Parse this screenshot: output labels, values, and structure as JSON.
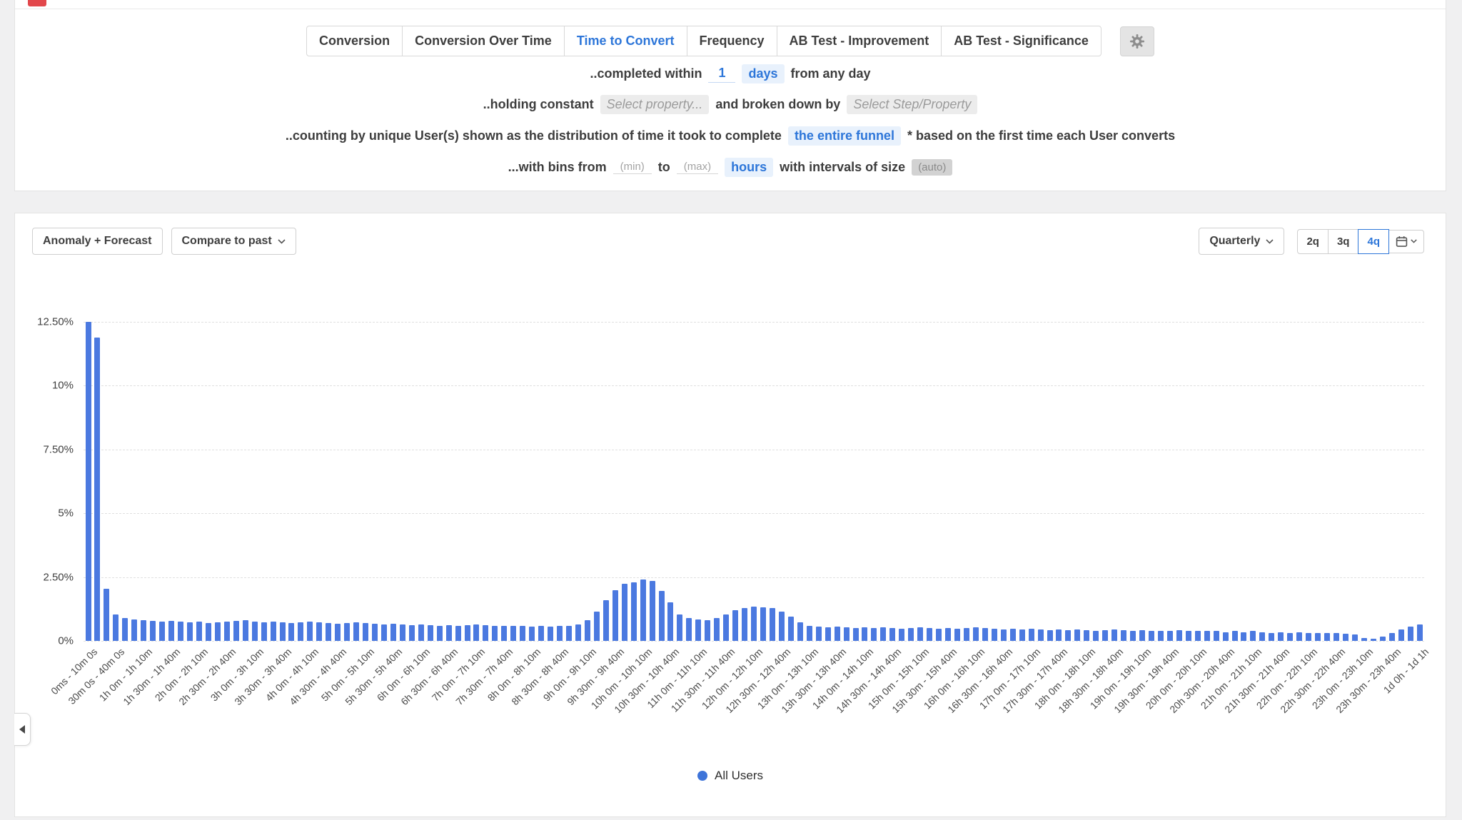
{
  "tabs": {
    "items": [
      {
        "label": "Conversion",
        "active": false
      },
      {
        "label": "Conversion Over Time",
        "active": false
      },
      {
        "label": "Time to Convert",
        "active": true
      },
      {
        "label": "Frequency",
        "active": false
      },
      {
        "label": "AB Test - Improvement",
        "active": false
      },
      {
        "label": "AB Test - Significance",
        "active": false
      }
    ]
  },
  "config": {
    "line1": {
      "prefix": "..completed within",
      "value": "1",
      "unit": "days",
      "suffix": "from any day"
    },
    "line2": {
      "prefix": "..holding constant",
      "placeholder1": "Select property...",
      "middle": "and broken down by",
      "placeholder2": "Select Step/Property"
    },
    "line3": {
      "prefix": "..counting by unique User(s) shown as the distribution of time it took to complete",
      "value": "the entire funnel",
      "suffix": "* based on the first time each User converts"
    },
    "line4": {
      "prefix": "...with bins from",
      "min_placeholder": "(min)",
      "to": "to",
      "max_placeholder": "(max)",
      "unit": "hours",
      "middle": "with intervals of size",
      "auto_placeholder": "(auto)"
    }
  },
  "toolbar": {
    "anomaly_forecast": "Anomaly + Forecast",
    "compare_to_past": "Compare to past",
    "interval": "Quarterly",
    "ranges": [
      "2q",
      "3q",
      "4q"
    ],
    "selected_range": "4q"
  },
  "legend": {
    "label": "All Users",
    "color": "#3e74d9"
  },
  "colors": {
    "bar": "#4b79e0",
    "accent": "#2d76d9"
  },
  "chart_data": {
    "type": "bar",
    "title": "",
    "xlabel": "",
    "ylabel": "",
    "ylim": [
      0,
      12.5
    ],
    "y_unit": "%",
    "grid": "dashed-horizontal",
    "legend_position": "bottom-center",
    "bin_size": "10 minutes",
    "x_label_every_n_bins": 3,
    "x_tick_labels": [
      "0ms - 10m 0s",
      "30m 0s - 40m 0s",
      "1h 0m - 1h 10m",
      "1h 30m - 1h 40m",
      "2h 0m - 2h 10m",
      "2h 30m - 2h 40m",
      "3h 0m - 3h 10m",
      "3h 30m - 3h 40m",
      "4h 0m - 4h 10m",
      "4h 30m - 4h 40m",
      "5h 0m - 5h 10m",
      "5h 30m - 5h 40m",
      "6h 0m - 6h 10m",
      "6h 30m - 6h 40m",
      "7h 0m - 7h 10m",
      "7h 30m - 7h 40m",
      "8h 0m - 8h 10m",
      "8h 30m - 8h 40m",
      "9h 0m - 9h 10m",
      "9h 30m - 9h 40m",
      "10h 0m - 10h 10m",
      "10h 30m - 10h 40m",
      "11h 0m - 11h 10m",
      "11h 30m - 11h 40m",
      "12h 0m - 12h 10m",
      "12h 30m - 12h 40m",
      "13h 0m - 13h 10m",
      "13h 30m - 13h 40m",
      "14h 0m - 14h 10m",
      "14h 30m - 14h 40m",
      "15h 0m - 15h 10m",
      "15h 30m - 15h 40m",
      "16h 0m - 16h 10m",
      "16h 30m - 16h 40m",
      "17h 0m - 17h 10m",
      "17h 30m - 17h 40m",
      "18h 0m - 18h 10m",
      "18h 30m - 18h 40m",
      "19h 0m - 19h 10m",
      "19h 30m - 19h 40m",
      "20h 0m - 20h 10m",
      "20h 30m - 20h 40m",
      "21h 0m - 21h 10m",
      "21h 30m - 21h 40m",
      "22h 0m - 22h 10m",
      "22h 30m - 22h 40m",
      "23h 0m - 23h 10m",
      "23h 30m - 23h 40m",
      "1d 0h - 1d 1h"
    ],
    "y_tick_labels": [
      "12.50%",
      "10%",
      "7.50%",
      "5%",
      "2.50%",
      "0%"
    ],
    "series": [
      {
        "name": "All Users",
        "color": "#4b79e0",
        "values": [
          12.5,
          11.9,
          2.05,
          1.05,
          0.9,
          0.85,
          0.8,
          0.78,
          0.75,
          0.78,
          0.75,
          0.72,
          0.75,
          0.7,
          0.72,
          0.75,
          0.78,
          0.8,
          0.75,
          0.72,
          0.75,
          0.72,
          0.7,
          0.72,
          0.75,
          0.72,
          0.7,
          0.68,
          0.7,
          0.72,
          0.7,
          0.68,
          0.65,
          0.68,
          0.65,
          0.62,
          0.65,
          0.62,
          0.6,
          0.62,
          0.6,
          0.62,
          0.65,
          0.62,
          0.6,
          0.58,
          0.6,
          0.58,
          0.55,
          0.58,
          0.55,
          0.58,
          0.6,
          0.65,
          0.8,
          1.15,
          1.6,
          2.0,
          2.25,
          2.3,
          2.4,
          2.35,
          1.95,
          1.5,
          1.05,
          0.9,
          0.85,
          0.82,
          0.9,
          1.05,
          1.2,
          1.3,
          1.35,
          1.32,
          1.28,
          1.15,
          0.95,
          0.72,
          0.6,
          0.55,
          0.52,
          0.55,
          0.52,
          0.5,
          0.52,
          0.5,
          0.52,
          0.5,
          0.48,
          0.5,
          0.52,
          0.5,
          0.48,
          0.5,
          0.48,
          0.5,
          0.52,
          0.5,
          0.48,
          0.45,
          0.48,
          0.45,
          0.48,
          0.45,
          0.42,
          0.45,
          0.42,
          0.45,
          0.42,
          0.4,
          0.42,
          0.45,
          0.42,
          0.4,
          0.42,
          0.4,
          0.38,
          0.4,
          0.42,
          0.4,
          0.38,
          0.4,
          0.38,
          0.35,
          0.38,
          0.35,
          0.38,
          0.35,
          0.32,
          0.35,
          0.32,
          0.35,
          0.32,
          0.3,
          0.32,
          0.3,
          0.28,
          0.25,
          0.12,
          0.08,
          0.18,
          0.3,
          0.45,
          0.55,
          0.65
        ]
      }
    ]
  }
}
